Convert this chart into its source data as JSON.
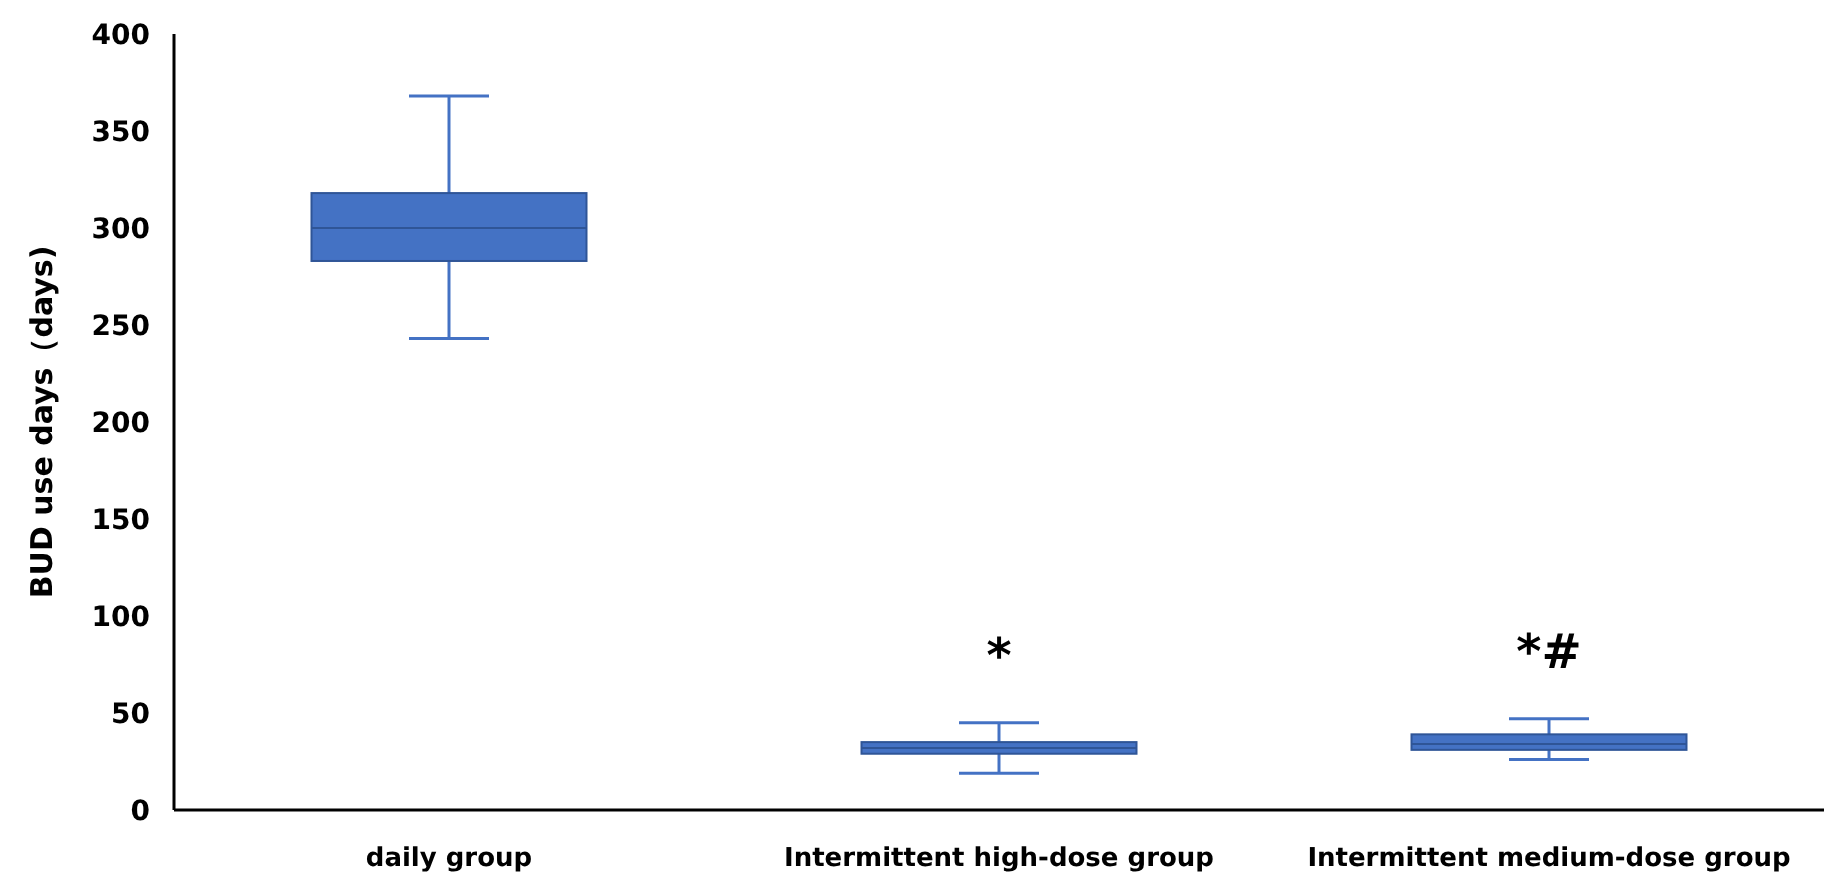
{
  "chart_data": {
    "type": "box",
    "ylabel": "BUD  use days（days)",
    "categories": [
      "daily group",
      "Intermittent high-dose group",
      "Intermittent medium-dose group"
    ],
    "boxes": [
      {
        "low": 243,
        "q1": 283,
        "median": 300,
        "q3": 318,
        "high": 368
      },
      {
        "low": 19,
        "q1": 29,
        "median": 32,
        "q3": 35,
        "high": 45
      },
      {
        "low": 26,
        "q1": 31,
        "median": 34,
        "q3": 39,
        "high": 47
      }
    ],
    "color": "#4472c4",
    "ylim": [
      0,
      400
    ],
    "yticks": [
      0,
      50,
      100,
      150,
      200,
      250,
      300,
      350,
      400
    ],
    "grid": false,
    "annotations": [
      "*",
      "*#"
    ]
  }
}
